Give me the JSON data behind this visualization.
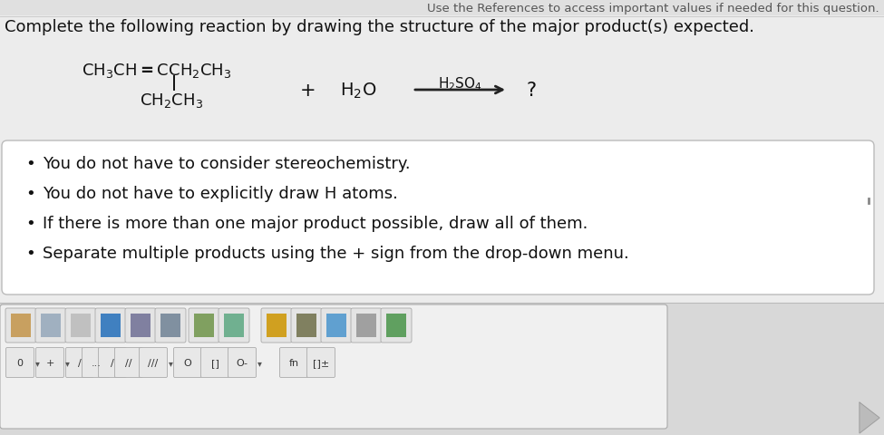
{
  "bg_color": "#ececec",
  "top_text": "Use the References to access important values if needed for this question.",
  "main_instruction": "Complete the following reaction by drawing the structure of the major product(s) expected.",
  "bullet_points": [
    "You do not have to consider stereochemistry.",
    "You do not have to explicitly draw H atoms.",
    "If there is more than one major product possible, draw all of them.",
    "Separate multiple products using the + sign from the drop-down menu."
  ],
  "box_bg": "#ffffff",
  "box_edge": "#bbbbbb",
  "arrow_color": "#222222",
  "text_color": "#111111",
  "top_text_color": "#555555",
  "toolbar_bg": "#d8d8d8",
  "toolbar_border": "#bbbbbb",
  "icon_bg": "#e8e8e8",
  "icon_border": "#aaaaaa"
}
